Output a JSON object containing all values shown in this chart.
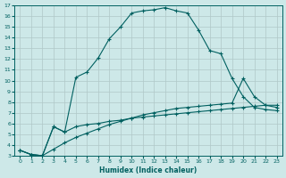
{
  "xlabel": "Humidex (Indice chaleur)",
  "bg_color": "#cde8e8",
  "grid_color": "#b0c8c8",
  "line_color": "#006060",
  "xlim": [
    -0.5,
    23.5
  ],
  "ylim": [
    3,
    17
  ],
  "yticks": [
    3,
    4,
    5,
    6,
    7,
    8,
    9,
    10,
    11,
    12,
    13,
    14,
    15,
    16,
    17
  ],
  "xticks": [
    0,
    1,
    2,
    3,
    4,
    5,
    6,
    7,
    8,
    9,
    10,
    11,
    12,
    13,
    14,
    15,
    16,
    17,
    18,
    19,
    20,
    21,
    22,
    23
  ],
  "line1_x": [
    0,
    1,
    2,
    3,
    4,
    5,
    6,
    7,
    8,
    9,
    10,
    11,
    12,
    13,
    14,
    15,
    16,
    17,
    18,
    19,
    20,
    21,
    22,
    23
  ],
  "line1_y": [
    3.5,
    3.1,
    3.0,
    5.7,
    5.2,
    10.3,
    10.8,
    12.1,
    13.9,
    15.0,
    16.3,
    16.5,
    16.6,
    16.8,
    16.5,
    16.3,
    14.7,
    12.8,
    12.5,
    10.2,
    8.5,
    7.5,
    7.3,
    7.2
  ],
  "line2_x": [
    0,
    1,
    2,
    3,
    4,
    5,
    6,
    7,
    8,
    9,
    10,
    11,
    12,
    13,
    14,
    15,
    16,
    17,
    18,
    19,
    20,
    21,
    22,
    23
  ],
  "line2_y": [
    3.5,
    3.1,
    3.0,
    5.7,
    5.2,
    5.7,
    5.9,
    6.0,
    6.2,
    6.3,
    6.5,
    6.6,
    6.7,
    6.8,
    6.9,
    7.0,
    7.1,
    7.2,
    7.3,
    7.4,
    7.5,
    7.6,
    7.7,
    7.7
  ],
  "line3_x": [
    0,
    1,
    2,
    3,
    4,
    5,
    6,
    7,
    8,
    9,
    10,
    11,
    12,
    13,
    14,
    15,
    16,
    17,
    18,
    19,
    20,
    21,
    22,
    23
  ],
  "line3_y": [
    3.5,
    3.1,
    3.0,
    3.6,
    4.2,
    4.7,
    5.1,
    5.5,
    5.9,
    6.2,
    6.5,
    6.8,
    7.0,
    7.2,
    7.4,
    7.5,
    7.6,
    7.7,
    7.8,
    7.9,
    10.2,
    8.5,
    7.7,
    7.5
  ]
}
